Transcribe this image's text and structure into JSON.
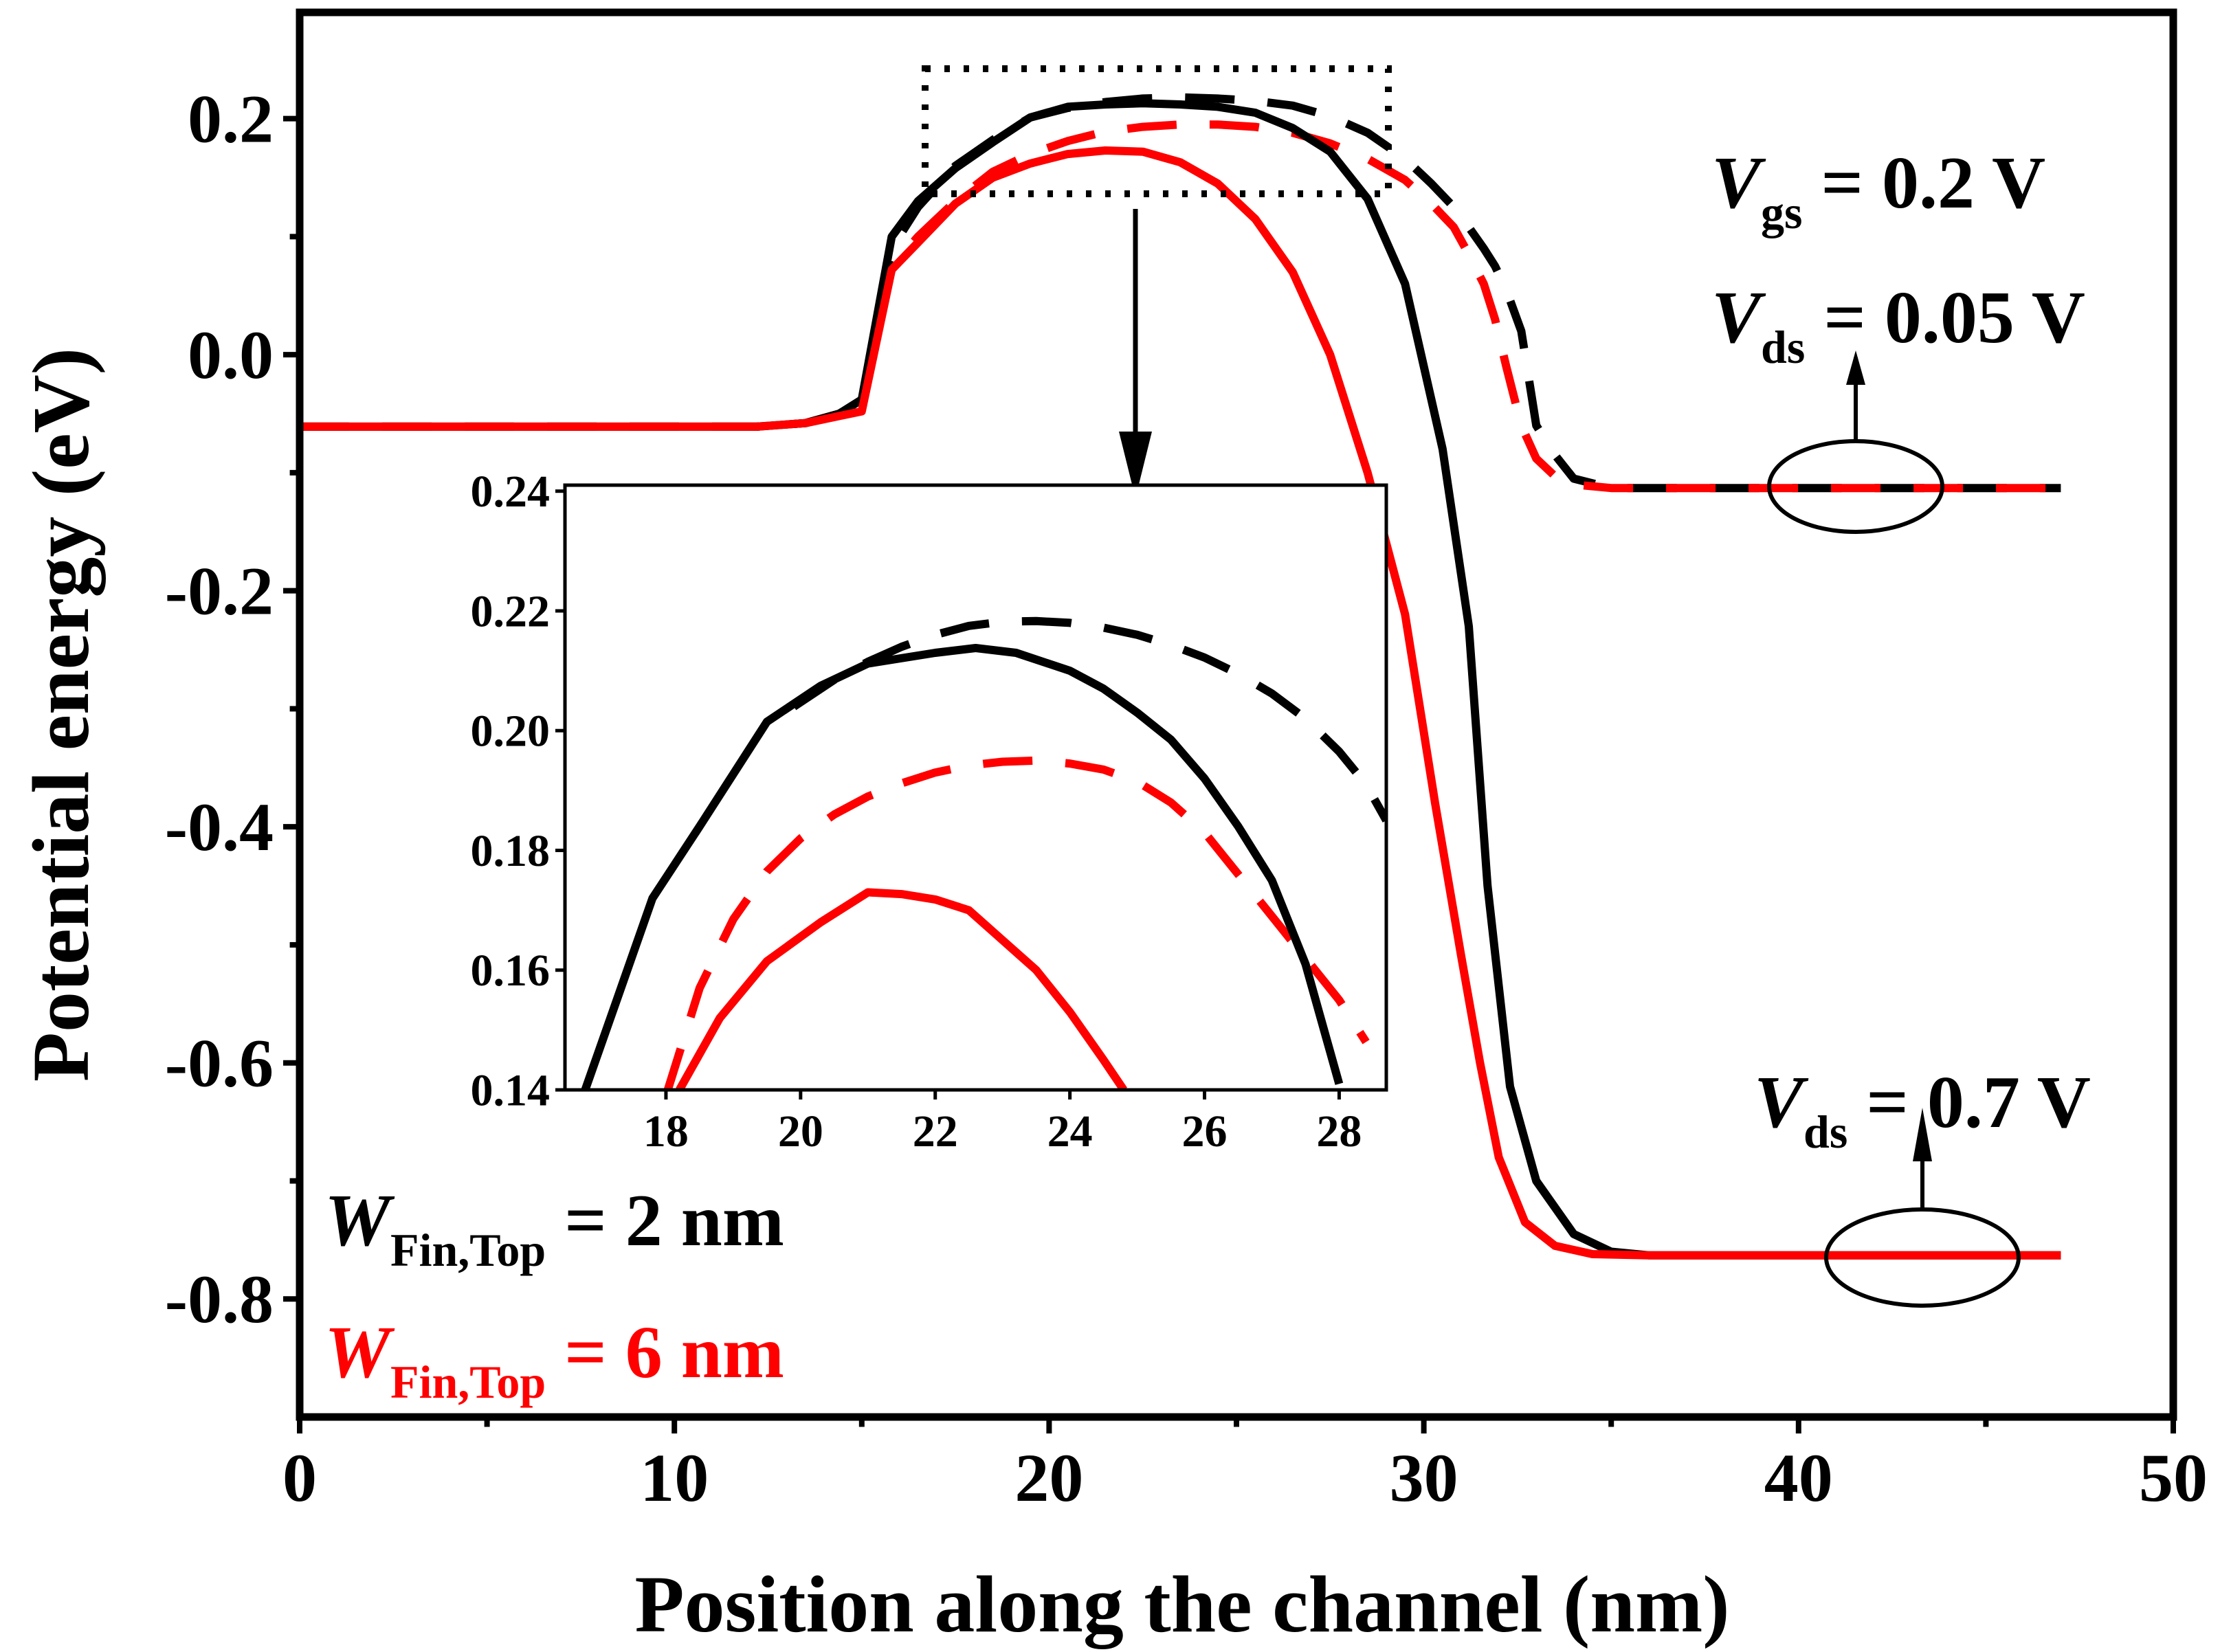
{
  "chart_data": [
    {
      "type": "line",
      "title": "",
      "xlabel": "Position along the channel (nm)",
      "ylabel": "Potential energy (eV)",
      "xlim": [
        0,
        50
      ],
      "ylim": [
        -0.9,
        0.29
      ],
      "xticks": [
        0,
        10,
        20,
        30,
        40,
        50
      ],
      "yticks": [
        0.2,
        0.0,
        -0.2,
        -0.4,
        -0.6,
        -0.8
      ],
      "xtick_labels": [
        "0",
        "10",
        "20",
        "30",
        "40",
        "50"
      ],
      "ytick_labels": [
        "0.2",
        "0.0",
        "-0.2",
        "-0.4",
        "-0.6",
        "-0.8"
      ],
      "series": [
        {
          "name": "WFin,Top = 2 nm, Vds = 0.05 V",
          "color": "#000000",
          "style": "dashed",
          "x": [
            0,
            12.2,
            13.5,
            14.4,
            15.0,
            15.8,
            16.5,
            17.5,
            18.5,
            19.5,
            20.5,
            21.5,
            22.5,
            23.5,
            24.5,
            25.5,
            26.5,
            27.5,
            28.5,
            29.5,
            30.2,
            30.8,
            31.2,
            31.6,
            31.9,
            32.2,
            32.6,
            33.0,
            33.5,
            34.0,
            35.0,
            40.0,
            47.0
          ],
          "y": [
            -0.061,
            -0.061,
            -0.058,
            -0.05,
            -0.038,
            0.09,
            0.125,
            0.16,
            0.182,
            0.201,
            0.209,
            0.214,
            0.217,
            0.218,
            0.217,
            0.215,
            0.211,
            0.202,
            0.188,
            0.166,
            0.145,
            0.125,
            0.108,
            0.09,
            0.075,
            0.055,
            0.02,
            -0.06,
            -0.085,
            -0.105,
            -0.113,
            -0.113,
            -0.113
          ]
        },
        {
          "name": "WFin,Top = 6 nm, Vds = 0.05 V",
          "color": "#ff0000",
          "style": "dashed",
          "x": [
            0,
            12.2,
            13.5,
            14.4,
            15.0,
            15.8,
            16.5,
            17.5,
            18.5,
            19.5,
            20.5,
            21.5,
            22.5,
            23.5,
            24.5,
            25.5,
            26.5,
            27.5,
            28.5,
            29.5,
            30.2,
            30.8,
            31.2,
            31.6,
            31.9,
            32.2,
            32.6,
            33.0,
            33.5,
            34.0,
            35.0,
            40.0,
            47.0
          ],
          "y": [
            -0.061,
            -0.061,
            -0.058,
            -0.05,
            -0.045,
            0.075,
            0.1,
            0.13,
            0.155,
            0.17,
            0.181,
            0.189,
            0.193,
            0.195,
            0.195,
            0.193,
            0.188,
            0.179,
            0.166,
            0.148,
            0.128,
            0.108,
            0.085,
            0.06,
            0.03,
            -0.01,
            -0.06,
            -0.088,
            -0.103,
            -0.11,
            -0.113,
            -0.113,
            -0.113
          ]
        },
        {
          "name": "WFin,Top = 2 nm, Vds = 0.7 V",
          "color": "#000000",
          "style": "solid",
          "x": [
            0,
            12.2,
            13.5,
            14.4,
            15.0,
            15.8,
            16.5,
            17.5,
            18.5,
            19.5,
            20.5,
            21.5,
            22.5,
            23.5,
            24.5,
            25.5,
            26.5,
            27.5,
            28.5,
            29.5,
            30.5,
            31.2,
            31.7,
            32.3,
            33.0,
            34.0,
            35.0,
            36.0,
            47.0
          ],
          "y": [
            -0.061,
            -0.061,
            -0.058,
            -0.05,
            -0.038,
            0.1,
            0.13,
            0.158,
            0.18,
            0.201,
            0.21,
            0.212,
            0.213,
            0.212,
            0.21,
            0.205,
            0.192,
            0.172,
            0.132,
            0.06,
            -0.08,
            -0.23,
            -0.45,
            -0.62,
            -0.7,
            -0.745,
            -0.76,
            -0.763,
            -0.763
          ]
        },
        {
          "name": "WFin,Top = 6 nm, Vds = 0.7 V",
          "color": "#ff0000",
          "style": "solid",
          "x": [
            0,
            12.2,
            13.5,
            14.4,
            15.0,
            15.8,
            16.5,
            17.5,
            18.5,
            19.5,
            20.5,
            21.5,
            22.5,
            23.5,
            24.5,
            25.5,
            26.5,
            27.5,
            28.5,
            29.5,
            30.3,
            31.0,
            31.5,
            32.0,
            32.7,
            33.5,
            34.5,
            36.0,
            47.0
          ],
          "y": [
            -0.061,
            -0.061,
            -0.058,
            -0.052,
            -0.048,
            0.072,
            0.095,
            0.128,
            0.15,
            0.162,
            0.17,
            0.173,
            0.172,
            0.163,
            0.145,
            0.115,
            0.07,
            0.0,
            -0.1,
            -0.22,
            -0.38,
            -0.51,
            -0.6,
            -0.68,
            -0.735,
            -0.755,
            -0.762,
            -0.763,
            -0.763
          ]
        }
      ]
    },
    {
      "type": "line",
      "title": "inset",
      "xlim": [
        16.5,
        28.7
      ],
      "ylim": [
        0.14,
        0.241
      ],
      "xticks": [
        18,
        20,
        22,
        24,
        26,
        28
      ],
      "yticks": [
        0.14,
        0.16,
        0.18,
        0.2,
        0.22,
        0.24
      ],
      "xtick_labels": [
        "18",
        "20",
        "22",
        "24",
        "26",
        "28"
      ],
      "ytick_labels": [
        "0.14",
        "0.16",
        "0.18",
        "0.20",
        "0.22",
        "0.24"
      ],
      "series": [
        {
          "name": "WFin,Top = 2 nm, Vds = 0.05 V",
          "color": "#000000",
          "style": "dashed",
          "x": [
            19.9,
            20.5,
            21.0,
            21.5,
            22.0,
            22.5,
            23.0,
            23.5,
            24.0,
            24.5,
            25.0,
            25.5,
            26.0,
            26.5,
            27.0,
            27.5,
            28.0,
            28.4,
            28.7
          ],
          "y": [
            0.204,
            0.2085,
            0.2115,
            0.214,
            0.216,
            0.2175,
            0.2182,
            0.2183,
            0.218,
            0.2172,
            0.216,
            0.2143,
            0.2122,
            0.2095,
            0.2062,
            0.202,
            0.1965,
            0.191,
            0.185
          ]
        },
        {
          "name": "WFin,Top = 6 nm, Vds = 0.05 V",
          "color": "#ff0000",
          "style": "dashed",
          "x": [
            18.0,
            18.5,
            19.0,
            19.5,
            20.0,
            20.5,
            21.0,
            21.5,
            22.0,
            22.5,
            23.0,
            23.5,
            24.0,
            24.5,
            25.0,
            25.5,
            26.0,
            26.5,
            27.0,
            27.5,
            28.0,
            28.4
          ],
          "y": [
            0.139,
            0.157,
            0.1685,
            0.1765,
            0.182,
            0.186,
            0.189,
            0.1912,
            0.193,
            0.1942,
            0.1948,
            0.195,
            0.1945,
            0.1935,
            0.1915,
            0.188,
            0.183,
            0.176,
            0.169,
            0.162,
            0.155,
            0.148
          ]
        },
        {
          "name": "WFin,Top = 2 nm, Vds = 0.7 V",
          "color": "#000000",
          "style": "solid",
          "x": [
            16.8,
            17.3,
            17.8,
            18.5,
            19.5,
            20.3,
            21.0,
            22.0,
            22.6,
            23.2,
            24.0,
            24.5,
            25.0,
            25.5,
            26.0,
            26.5,
            27.0,
            27.5,
            28.0
          ],
          "y": [
            0.14,
            0.156,
            0.172,
            0.184,
            0.2015,
            0.2075,
            0.2112,
            0.213,
            0.2138,
            0.213,
            0.21,
            0.207,
            0.203,
            0.1985,
            0.192,
            0.184,
            0.175,
            0.161,
            0.141
          ]
        },
        {
          "name": "WFin,Top = 6 nm, Vds = 0.7 V",
          "color": "#ff0000",
          "style": "solid",
          "x": [
            18.2,
            18.8,
            19.5,
            20.3,
            21.0,
            21.5,
            22.0,
            22.5,
            23.0,
            23.5,
            24.0,
            24.5,
            24.8
          ],
          "y": [
            0.14,
            0.152,
            0.1615,
            0.168,
            0.173,
            0.1727,
            0.1718,
            0.17,
            0.165,
            0.16,
            0.153,
            0.145,
            0.14
          ]
        }
      ]
    }
  ],
  "legend": {
    "top_prefix": "W",
    "top_sub": "Fin,Top",
    "top_value": " = 2 nm",
    "bottom_prefix": "W",
    "bottom_sub": "Fin,Top",
    "bottom_value": " = 6 nm",
    "top_color": "#000000",
    "bottom_color": "#ff0000"
  },
  "annotations": {
    "vgs_prefix": "V",
    "vgs_sub": "gs",
    "vgs_value": " = 0.2 V",
    "vds_low_prefix": "V",
    "vds_low_sub": "ds",
    "vds_low_value": " = 0.05 V",
    "vds_high_prefix": "V",
    "vds_high_sub": "ds",
    "vds_high_value": " = 0.7 V"
  }
}
